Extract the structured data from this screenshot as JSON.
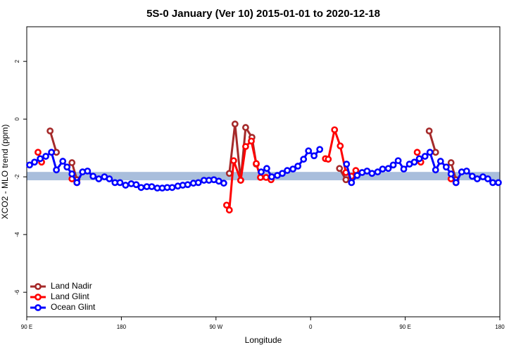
{
  "chart_data": {
    "type": "line",
    "title": "5S-0 January (Ver 10)   2015-01-01 to 2020-12-18",
    "xlabel": "Longitude",
    "ylabel": "XCO2 - MLO trend (ppm)",
    "xlim": [
      90,
      540
    ],
    "ylim": [
      -6.85,
      3.2
    ],
    "xticks": [
      {
        "value": 90,
        "label": "90 E"
      },
      180,
      {
        "value": 270,
        "label": "90 W"
      },
      {
        "value": 360,
        "label": "0"
      },
      {
        "value": 450,
        "label": "90 E"
      },
      {
        "value": 540,
        "label": "180"
      }
    ],
    "yticks": [
      -6,
      -4,
      -2,
      0,
      2
    ],
    "reference_band": [
      -2.12,
      -1.83
    ],
    "band_color": "#a9bedc",
    "legend": "bottom-left",
    "series": [
      {
        "name": "Land Nadir",
        "color": "#a52a2a",
        "x": [
          112.2,
          118.2,
          null,
          133.0,
          137.7,
          null,
          282.7,
          288.1,
          293.5,
          298.2,
          304.2,
          308.3,
          null,
          387.5,
          393.6,
          null,
          472.8,
          478.9,
          null,
          493.6,
          498.3
        ],
        "values": [
          -0.41,
          -1.15,
          null,
          -1.51,
          -2.1,
          null,
          -1.88,
          -0.17,
          -2.12,
          -0.29,
          -0.63,
          -1.56,
          null,
          -1.71,
          -2.1,
          null,
          -0.41,
          -1.15,
          null,
          -1.51,
          -2.1
        ]
      },
      {
        "name": "Land Glint",
        "color": "#ff0000",
        "x": [
          100.7,
          104.1,
          null,
          133.0,
          137.7,
          null,
          280.1,
          282.7,
          286.8,
          293.5,
          298.2,
          303.6,
          308.3,
          312.3,
          317.7,
          322.4,
          null,
          374.1,
          376.8,
          382.8,
          388.2,
          393.6,
          398.9,
          403.0,
          null,
          461.4,
          464.8,
          null,
          493.6,
          498.3
        ],
        "values": [
          -1.15,
          -1.49,
          null,
          -2.07,
          -2.2,
          null,
          -2.98,
          -3.15,
          -1.44,
          -2.12,
          -0.95,
          -0.76,
          -1.54,
          -2.02,
          -2.02,
          -2.1,
          null,
          -1.37,
          -1.39,
          -0.37,
          -0.93,
          -1.85,
          -1.98,
          -1.78,
          null,
          -1.15,
          -1.49,
          null,
          -2.07,
          -2.2
        ]
      },
      {
        "name": "Ocean Glint",
        "color": "#0000ff",
        "x": [
          92.7,
          97.4,
          102.8,
          108.1,
          113.5,
          118.2,
          124.3,
          128.3,
          133.0,
          137.7,
          143.1,
          147.8,
          153.1,
          158.5,
          163.9,
          168.6,
          173.9,
          178.7,
          184.0,
          189.4,
          194.1,
          198.8,
          204.2,
          208.9,
          214.2,
          218.9,
          223.6,
          228.3,
          233.7,
          238.4,
          243.1,
          248.5,
          253.2,
          258.6,
          263.3,
          268.0,
          272.7,
          277.4,
          null,
          313.0,
          318.3,
          323.0,
          328.4,
          333.1,
          337.8,
          343.2,
          347.9,
          353.3,
          358.0,
          363.3,
          368.7,
          null,
          394.2,
          398.9,
          404.3,
          409.0,
          413.7,
          418.4,
          423.8,
          428.5,
          433.9,
          438.6,
          443.3,
          448.6,
          454.0,
          458.7,
          463.4,
          468.8,
          473.5,
          478.9,
          483.6,
          489.0,
          493.6,
          498.3,
          503.7,
          508.4,
          513.8,
          518.5,
          523.9,
          528.6,
          533.3,
          538.6
        ],
        "values": [
          -1.59,
          -1.49,
          -1.37,
          -1.29,
          -1.15,
          -1.76,
          -1.46,
          -1.66,
          -1.9,
          -2.2,
          -1.83,
          -1.8,
          -1.98,
          -2.07,
          -2.0,
          -2.07,
          -2.2,
          -2.2,
          -2.29,
          -2.24,
          -2.27,
          -2.37,
          -2.34,
          -2.34,
          -2.39,
          -2.39,
          -2.37,
          -2.37,
          -2.32,
          -2.29,
          -2.27,
          -2.22,
          -2.2,
          -2.12,
          -2.12,
          -2.1,
          -2.15,
          -2.22,
          null,
          -1.83,
          -1.71,
          -2.0,
          -1.95,
          -1.88,
          -1.78,
          -1.73,
          -1.63,
          -1.39,
          -1.1,
          -1.27,
          -1.05,
          null,
          -1.56,
          -2.2,
          -1.95,
          -1.85,
          -1.8,
          -1.88,
          -1.83,
          -1.73,
          -1.71,
          -1.59,
          -1.44,
          -1.73,
          -1.56,
          -1.49,
          -1.37,
          -1.29,
          -1.15,
          -1.76,
          -1.46,
          -1.66,
          -1.9,
          -2.2,
          -1.83,
          -1.8,
          -1.98,
          -2.07,
          -2.0,
          -2.07,
          -2.2,
          -2.2
        ]
      }
    ]
  }
}
